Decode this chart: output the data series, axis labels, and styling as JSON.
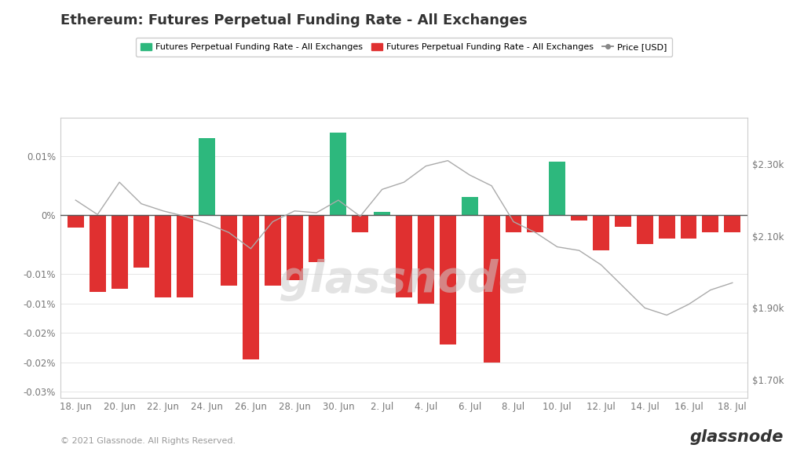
{
  "title": "Ethereum: Futures Perpetual Funding Rate - All Exchanges",
  "bar_values": [
    -2.2e-05,
    -0.00013,
    -0.000125,
    -9e-05,
    -0.00014,
    -0.00014,
    0.00013,
    -0.00012,
    -0.000245,
    -0.00012,
    -0.00011,
    -8e-05,
    0.00014,
    -3e-05,
    5e-06,
    -0.00014,
    -0.00015,
    -0.00022,
    3e-05,
    -0.00025,
    -3e-05,
    -3e-05,
    9e-05,
    -1e-05,
    -6e-05,
    -2e-05,
    -5e-05,
    -4e-05,
    -4e-05,
    -3e-05,
    -3e-05
  ],
  "bar_colors_positive": "#2db87d",
  "bar_colors_negative": "#e03030",
  "price_values": [
    2200,
    2160,
    2250,
    2190,
    2170,
    2155,
    2135,
    2110,
    2065,
    2140,
    2170,
    2165,
    2200,
    2155,
    2230,
    2250,
    2295,
    2310,
    2270,
    2240,
    2140,
    2110,
    2070,
    2060,
    2020,
    1960,
    1900,
    1880,
    1910,
    1950,
    1970
  ],
  "price_color": "#aaaaaa",
  "ylim_left": [
    -0.00031,
    0.000165
  ],
  "ylim_right": [
    1650,
    2430
  ],
  "ytick_vals_left": [
    -0.0003,
    -0.00025,
    -0.0002,
    -0.00015,
    -0.0001,
    0.0,
    0.0001
  ],
  "ytick_labels_left": [
    "-0.03%",
    "-0.02%",
    "-0.02%",
    "-0.01%",
    "-0.01%",
    "0%",
    "0.01%"
  ],
  "ytick_vals_right": [
    1700,
    1900,
    2100,
    2300
  ],
  "ytick_labels_right": [
    "$1.70k",
    "$1.90k",
    "$2.10k",
    "$2.30k"
  ],
  "xtick_labels": [
    "18. Jun",
    "20. Jun",
    "22. Jun",
    "24. Jun",
    "26. Jun",
    "28. Jun",
    "30. Jun",
    "2. Jul",
    "4. Jul",
    "6. Jul",
    "8. Jul",
    "10. Jul",
    "12. Jul",
    "14. Jul",
    "16. Jul",
    "18. Jul"
  ],
  "xtick_positions": [
    0,
    2,
    4,
    6,
    8,
    10,
    12,
    14,
    16,
    18,
    20,
    22,
    24,
    26,
    28,
    30
  ],
  "background_color": "#ffffff",
  "plot_bg_color": "#ffffff",
  "watermark": "glassnode",
  "footer_left": "© 2021 Glassnode. All Rights Reserved.",
  "footer_right": "glassnode",
  "legend_entries": [
    {
      "label": "Futures Perpetual Funding Rate - All Exchanges",
      "color": "#2db87d",
      "type": "circle"
    },
    {
      "label": "Futures Perpetual Funding Rate - All Exchanges",
      "color": "#e03030",
      "type": "circle"
    },
    {
      "label": "Price [USD]",
      "color": "#888888",
      "type": "line"
    }
  ]
}
